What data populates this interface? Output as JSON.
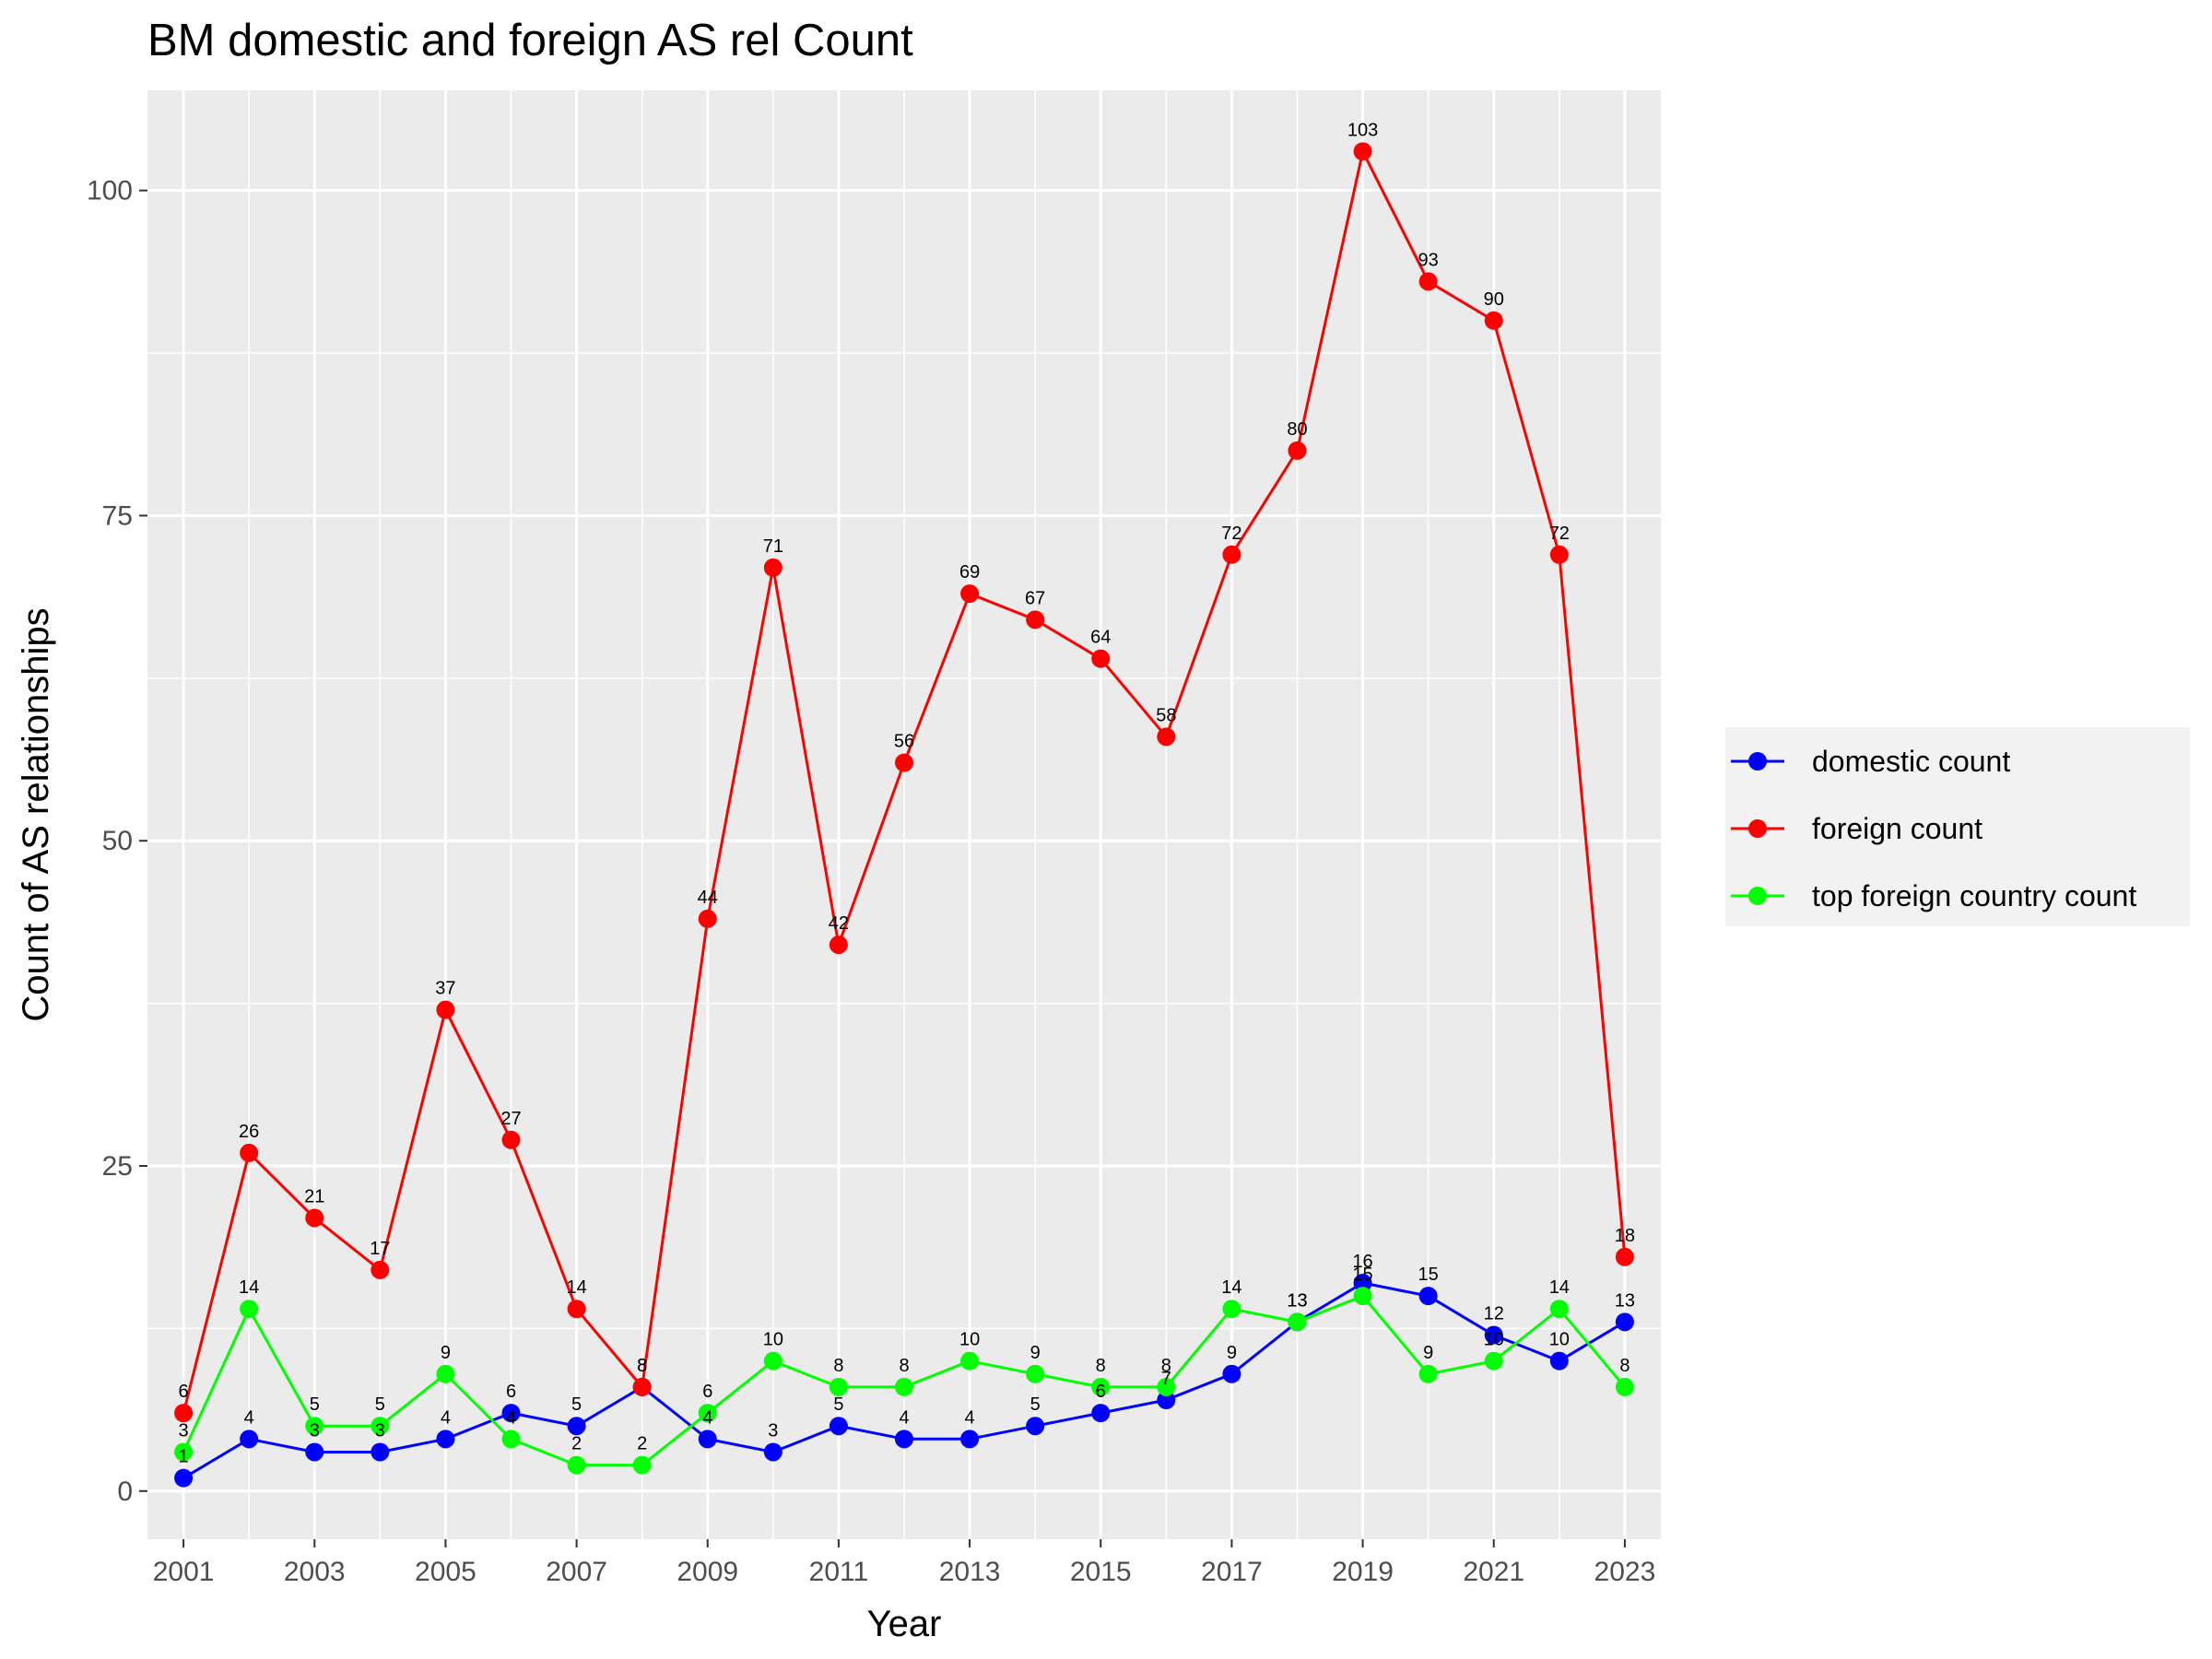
{
  "chart_data": {
    "type": "line",
    "title": "BM domestic and foreign AS rel Count",
    "xlabel": "Year",
    "ylabel": "Count of AS relationships",
    "x": [
      2001,
      2002,
      2003,
      2004,
      2005,
      2006,
      2007,
      2008,
      2009,
      2010,
      2011,
      2012,
      2013,
      2014,
      2015,
      2016,
      2017,
      2018,
      2019,
      2020,
      2021,
      2022,
      2023
    ],
    "x_ticks": [
      2001,
      2003,
      2005,
      2007,
      2009,
      2011,
      2013,
      2015,
      2017,
      2019,
      2021,
      2023
    ],
    "y_ticks": [
      0,
      25,
      50,
      75,
      100
    ],
    "xlim": [
      2000.45,
      2023.55
    ],
    "ylim": [
      -3.7,
      107.7
    ],
    "grid": true,
    "legend_position": "right",
    "series": [
      {
        "name": "domestic count",
        "color": "#0000ff",
        "values": [
          1,
          4,
          3,
          3,
          4,
          6,
          5,
          8,
          4,
          3,
          5,
          4,
          4,
          5,
          6,
          7,
          9,
          13,
          16,
          15,
          12,
          10,
          13
        ]
      },
      {
        "name": "foreign count",
        "color": "#ff0000",
        "values": [
          6,
          26,
          21,
          17,
          37,
          27,
          14,
          8,
          44,
          71,
          42,
          56,
          69,
          67,
          64,
          58,
          72,
          80,
          103,
          93,
          90,
          72,
          18
        ]
      },
      {
        "name": "top foreign country count",
        "color": "#00ff00",
        "values": [
          3,
          14,
          5,
          5,
          9,
          4,
          2,
          2,
          6,
          10,
          8,
          8,
          10,
          9,
          8,
          8,
          14,
          13,
          15,
          9,
          10,
          14,
          8
        ]
      }
    ]
  }
}
